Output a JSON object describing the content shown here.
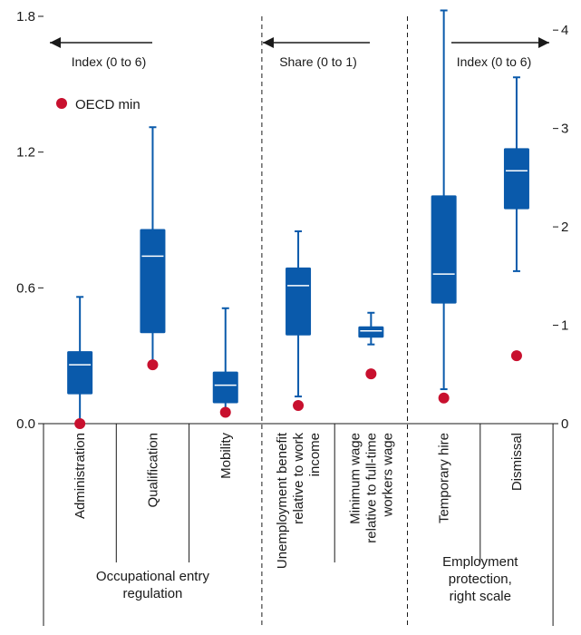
{
  "chart_data": {
    "type": "boxplot",
    "left_axis": {
      "ticks": [
        "0.0",
        "0.6",
        "1.2",
        "1.8"
      ],
      "range": [
        0,
        1.8
      ]
    },
    "right_axis": {
      "ticks": [
        "0",
        "1",
        "2",
        "3",
        "4"
      ],
      "range": [
        0,
        4.14
      ]
    },
    "colors": {
      "box": "#0a5aab",
      "median": "#ffffff",
      "oecd_min": "#c8102e"
    },
    "legend": {
      "label": "OECD min",
      "placement": "top-left"
    },
    "annotations": [
      {
        "text": "Index (0 to 6)",
        "arrow": "left"
      },
      {
        "text": "Share (0 to 1)",
        "arrow": "left"
      },
      {
        "text": "Index (0 to 6)",
        "arrow": "right"
      }
    ],
    "groups": [
      {
        "label_lines": [
          "Occupational entry",
          "regulation"
        ]
      },
      {
        "label_lines": []
      },
      {
        "label_lines": [
          "Employment",
          "protection,",
          "right scale"
        ]
      }
    ],
    "categories": [
      {
        "label_lines": [
          "Administration"
        ],
        "axis": "left",
        "whisker_low": 0.0,
        "q1": 0.13,
        "median": 0.26,
        "q3": 0.32,
        "whisker_high": 0.56,
        "oecd_min": 0.0
      },
      {
        "label_lines": [
          "Qualification"
        ],
        "axis": "left",
        "whisker_low": 0.26,
        "q1": 0.4,
        "median": 0.74,
        "q3": 0.86,
        "whisker_high": 1.31,
        "oecd_min": 0.26
      },
      {
        "label_lines": [
          "Mobility"
        ],
        "axis": "left",
        "whisker_low": 0.05,
        "q1": 0.09,
        "median": 0.17,
        "q3": 0.23,
        "whisker_high": 0.51,
        "oecd_min": 0.05
      },
      {
        "label_lines": [
          "Unemployment benefit",
          "relative to work",
          "income"
        ],
        "axis": "left",
        "whisker_low": 0.12,
        "q1": 0.39,
        "median": 0.61,
        "q3": 0.69,
        "whisker_high": 0.85,
        "oecd_min": 0.08
      },
      {
        "label_lines": [
          "Minimum wage",
          "relative to full-time",
          "workers wage"
        ],
        "axis": "left",
        "whisker_low": 0.35,
        "q1": 0.38,
        "median": 0.41,
        "q3": 0.43,
        "whisker_high": 0.49,
        "oecd_min": 0.22
      },
      {
        "label_lines": [
          "Temporary hire"
        ],
        "axis": "right",
        "whisker_low": 0.35,
        "q1": 1.22,
        "median": 1.52,
        "q3": 2.32,
        "whisker_high": 4.2,
        "oecd_min": 0.26
      },
      {
        "label_lines": [
          "Dismissal"
        ],
        "axis": "right",
        "whisker_low": 1.55,
        "q1": 2.18,
        "median": 2.57,
        "q3": 2.8,
        "whisker_high": 3.52,
        "oecd_min": 0.69
      }
    ]
  }
}
